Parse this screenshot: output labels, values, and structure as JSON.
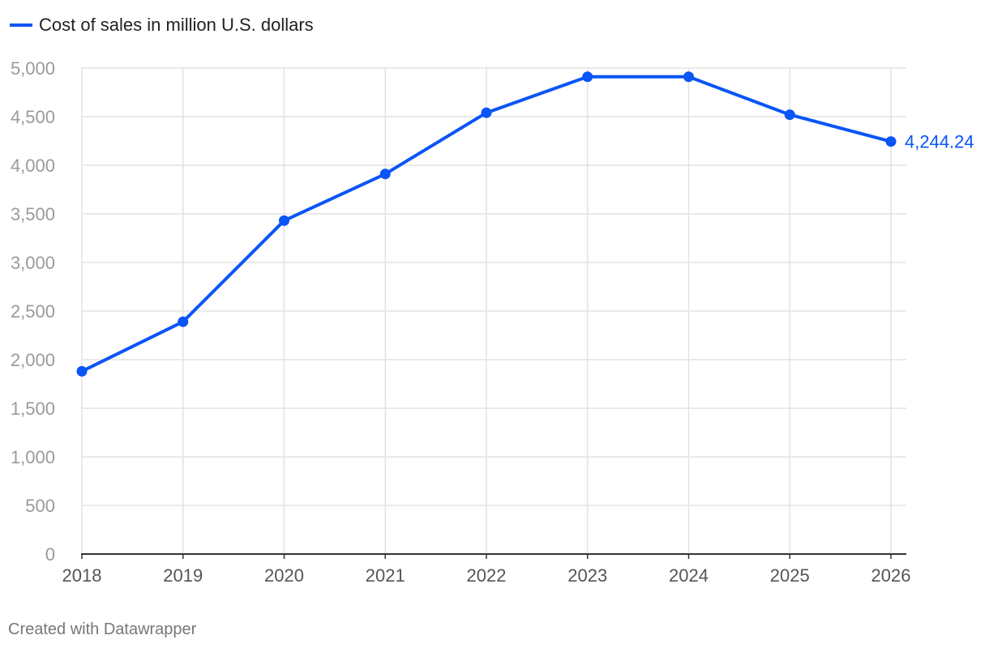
{
  "colors": {
    "series": "#0a55f5",
    "grid": "#e3e3e3",
    "axis": "#333333"
  },
  "chart_data": {
    "type": "line",
    "title": "",
    "xlabel": "",
    "ylabel": "",
    "categories": [
      "2018",
      "2019",
      "2020",
      "2021",
      "2022",
      "2023",
      "2024",
      "2025",
      "2026"
    ],
    "series": [
      {
        "name": "Cost of sales in million U.S. dollars",
        "values": [
          1880,
          2390,
          3430,
          3910,
          4540,
          4910,
          4910,
          4520,
          4244.24
        ]
      }
    ],
    "ylim": [
      0,
      5000
    ],
    "yticks": [
      0,
      500,
      1000,
      1500,
      2000,
      2500,
      3000,
      3500,
      4000,
      4500,
      5000
    ],
    "ytick_labels": [
      "0",
      "500",
      "1,000",
      "1,500",
      "2,000",
      "2,500",
      "3,000",
      "3,500",
      "4,000",
      "4,500",
      "5,000"
    ],
    "end_label": "4,244.24",
    "grid": true,
    "legend_position": "top-left"
  },
  "footer": {
    "credit": "Created with Datawrapper"
  }
}
